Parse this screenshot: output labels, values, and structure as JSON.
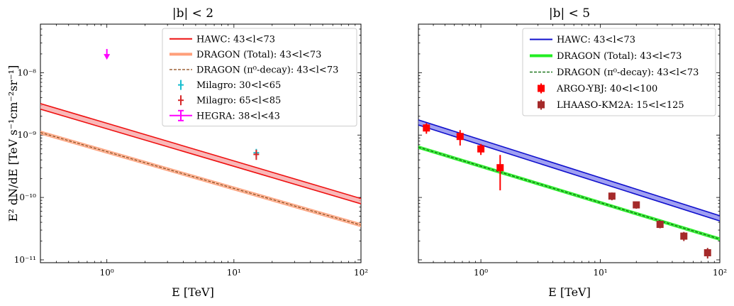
{
  "figure": {
    "ylabel_shared": "E² dN/dE [TeV s⁻¹cm⁻²sr⁻¹]",
    "xlabel_shared": "E [TeV]"
  },
  "chart_data": [
    {
      "type": "line",
      "title": "|b| < 2",
      "xlabel": "E [TeV]",
      "ylabel": "E² dN/dE [TeV s⁻¹cm⁻²sr⁻¹]",
      "xscale": "log",
      "yscale": "log",
      "xlim": [
        0.3,
        100
      ],
      "ylim": [
        9e-12,
        6e-08
      ],
      "xticks": [
        {
          "v": 1,
          "label": "10⁰"
        },
        {
          "v": 10,
          "label": "10¹"
        },
        {
          "v": 100,
          "label": "10²"
        }
      ],
      "yticks": [
        {
          "v": 1e-11,
          "label": "10⁻¹¹"
        },
        {
          "v": 1e-10,
          "label": "10⁻¹⁰"
        },
        {
          "v": 1e-09,
          "label": "10⁻⁹"
        },
        {
          "v": 1e-08,
          "label": "10⁻⁸"
        }
      ],
      "legend_position": "top-right",
      "bands": [
        {
          "name": "HAWC: 43<l<73",
          "color": "#ee1111",
          "fill": "#f7a0a0",
          "x": [
            0.3,
            100
          ],
          "lower": [
            2.6e-09,
            7.9e-11
          ],
          "upper": [
            3.2e-09,
            9.6e-11
          ],
          "center": [
            2.9e-09,
            8.7e-11
          ]
        },
        {
          "name": "DRAGON (Total): 43<l<73",
          "color": "#ff9f7a",
          "fill": "#ffb08f",
          "x": [
            0.3,
            100
          ],
          "lower": [
            1.04e-09,
            3.4e-11
          ],
          "upper": [
            1.16e-09,
            3.8e-11
          ],
          "center": [
            1.1e-09,
            3.6e-11
          ]
        }
      ],
      "dashed_lines": [
        {
          "name": "DRAGON (π⁰-decay): 43<l<73",
          "color": "#8b4513",
          "x": [
            0.3,
            100
          ],
          "y": [
            1.1e-09,
            3.6e-11
          ]
        }
      ],
      "points": [
        {
          "name": "Milagro: 30<l<65",
          "color": "#17becf",
          "marker": "plus",
          "x": 15,
          "y": 5.2e-10,
          "yerr_low": 4.4e-10,
          "yerr_high": 6e-10
        },
        {
          "name": "Milagro: 65<l<85",
          "color": "#d62728",
          "marker": "plus",
          "x": 15,
          "y": 4.9e-10,
          "yerr_low": 4e-10,
          "yerr_high": 5.8e-10
        },
        {
          "name": "HEGRA: 38<l<43",
          "color": "#ff00ff",
          "marker": "upper-limit",
          "x": 1.0,
          "y": 2.4e-08,
          "arrow_to": 1.7e-08
        }
      ],
      "legend": [
        {
          "label": "HAWC: 43<l<73",
          "color": "#ee1111",
          "style": "line"
        },
        {
          "label": "DRAGON (Total): 43<l<73",
          "color": "#ff9f7a",
          "style": "thick"
        },
        {
          "label": "DRAGON (π⁰-decay): 43<l<73",
          "color": "#8b4513",
          "style": "dashed"
        },
        {
          "label": "Milagro: 30<l<65",
          "color": "#17becf",
          "style": "plus"
        },
        {
          "label": "Milagro: 65<l<85",
          "color": "#d62728",
          "style": "plus"
        },
        {
          "label": "HEGRA: 38<l<43",
          "color": "#ff00ff",
          "style": "errorbar"
        }
      ]
    },
    {
      "type": "line",
      "title": "|b| < 5",
      "xlabel": "E [TeV]",
      "ylabel": "",
      "xscale": "log",
      "yscale": "log",
      "xlim": [
        0.3,
        100
      ],
      "ylim": [
        9e-12,
        6e-08
      ],
      "xticks": [
        {
          "v": 1,
          "label": "10⁰"
        },
        {
          "v": 10,
          "label": "10¹"
        },
        {
          "v": 100,
          "label": "10²"
        }
      ],
      "yticks": [
        {
          "v": 1e-11,
          "label": ""
        },
        {
          "v": 1e-10,
          "label": ""
        },
        {
          "v": 1e-09,
          "label": ""
        },
        {
          "v": 1e-08,
          "label": ""
        }
      ],
      "legend_position": "top-right",
      "bands": [
        {
          "name": "HAWC: 43<l<73",
          "color": "#1010cc",
          "fill": "#8080ee",
          "x": [
            0.3,
            100
          ],
          "lower": [
            1.45e-09,
            4.2e-11
          ],
          "upper": [
            1.75e-09,
            5.1e-11
          ],
          "center": [
            1.6e-09,
            4.6e-11
          ]
        },
        {
          "name": "DRAGON (Total): 43<l<73",
          "color": "#22ee22",
          "fill": "#22ee22",
          "x": [
            0.3,
            100
          ],
          "lower": [
            6.1e-10,
            2.05e-11
          ],
          "upper": [
            6.7e-10,
            2.25e-11
          ],
          "center": [
            6.4e-10,
            2.15e-11
          ]
        }
      ],
      "dashed_lines": [
        {
          "name": "DRAGON (π⁰-decay): 43<l<73",
          "color": "#006400",
          "x": [
            0.3,
            100
          ],
          "y": [
            6.4e-10,
            2.15e-11
          ]
        }
      ],
      "points": [],
      "series": [
        {
          "name": "ARGO-YBJ: 40<l<100",
          "color": "#ff0000",
          "marker": "square",
          "x": [
            0.35,
            0.67,
            1.0,
            1.45
          ],
          "y": [
            1.3e-09,
            9.5e-10,
            6e-10,
            3e-10
          ],
          "yerr_low": [
            1.05e-09,
            6.8e-10,
            4.8e-10,
            1.3e-10
          ],
          "yerr_high": [
            1.55e-09,
            1.2e-09,
            7.2e-10,
            4.8e-10
          ]
        },
        {
          "name": "LHAASO-KM2A: 15<l<125",
          "color": "#a52a2a",
          "marker": "square",
          "x": [
            12.5,
            20,
            31.6,
            50,
            79
          ],
          "y": [
            1.05e-10,
            7.6e-11,
            3.7e-11,
            2.4e-11,
            1.3e-11
          ],
          "yerr_low": [
            9e-11,
            6.6e-11,
            3.2e-11,
            2e-11,
            1.05e-11
          ],
          "yerr_high": [
            1.2e-10,
            8.6e-11,
            4.2e-11,
            2.8e-11,
            1.55e-11
          ]
        }
      ],
      "legend": [
        {
          "label": "HAWC: 43<l<73",
          "color": "#1010cc",
          "style": "line"
        },
        {
          "label": "DRAGON (Total): 43<l<73",
          "color": "#22ee22",
          "style": "thick"
        },
        {
          "label": "DRAGON (π⁰-decay): 43<l<73",
          "color": "#006400",
          "style": "dashed"
        },
        {
          "label": "ARGO-YBJ: 40<l<100",
          "color": "#ff0000",
          "style": "square"
        },
        {
          "label": "LHAASO-KM2A: 15<l<125",
          "color": "#a52a2a",
          "style": "square"
        }
      ]
    }
  ]
}
